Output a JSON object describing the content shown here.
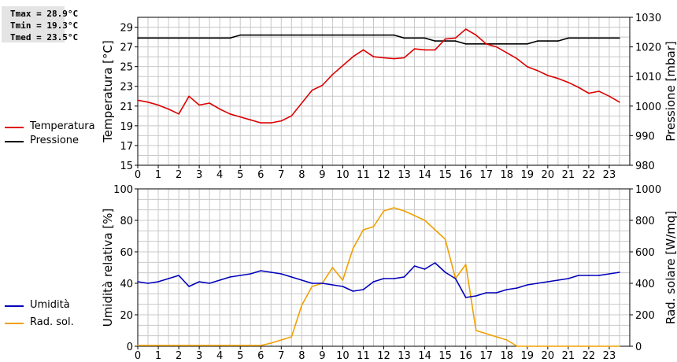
{
  "stats": {
    "tmax": "Tmax = 28.9°C",
    "tmin": "Tmin = 19.3°C",
    "tmed": "Tmed = 23.5°C"
  },
  "colors": {
    "temperature": "#dd0000",
    "pressure": "#000000",
    "humidity": "#0000bb",
    "radiation": "#f0a000",
    "grid": "#c8c8c8"
  },
  "chart_data": [
    {
      "type": "line",
      "ylabel_left": "Temperatura [°C]",
      "ylabel_right": "Pressione [mbar]",
      "x_ticks": [
        "0",
        "1",
        "2",
        "3",
        "4",
        "5",
        "6",
        "7",
        "8",
        "9",
        "10",
        "11",
        "12",
        "13",
        "14",
        "15",
        "16",
        "17",
        "18",
        "19",
        "20",
        "21",
        "22",
        "23"
      ],
      "xlim": [
        0,
        24
      ],
      "ylim_left": [
        15,
        30
      ],
      "ylim_right": [
        980,
        1030
      ],
      "y_ticks_left": [
        "15",
        "17",
        "19",
        "21",
        "23",
        "25",
        "27",
        "29"
      ],
      "y_ticks_right": [
        "980",
        "990",
        "1000",
        "1010",
        "1020",
        "1030"
      ],
      "series": [
        {
          "name": "Temperatura",
          "axis": "left",
          "x": [
            0,
            0.5,
            1,
            1.5,
            2,
            2.5,
            3,
            3.5,
            4,
            4.5,
            5,
            5.5,
            6,
            6.5,
            7,
            7.5,
            8,
            8.5,
            9,
            9.5,
            10,
            10.5,
            11,
            11.5,
            12,
            12.5,
            13,
            13.5,
            14,
            14.5,
            15,
            15.5,
            16,
            16.5,
            17,
            17.5,
            18,
            18.5,
            19,
            19.5,
            20,
            20.5,
            21,
            21.5,
            22,
            22.5,
            23,
            23.5
          ],
          "values": [
            21.6,
            21.4,
            21.1,
            20.7,
            20.2,
            22.0,
            21.1,
            21.3,
            20.7,
            20.2,
            19.9,
            19.6,
            19.3,
            19.3,
            19.5,
            20.0,
            21.3,
            22.6,
            23.1,
            24.2,
            25.1,
            26.0,
            26.7,
            26.0,
            25.9,
            25.8,
            25.9,
            26.8,
            26.7,
            26.7,
            27.8,
            27.9,
            28.8,
            28.2,
            27.3,
            27.0,
            26.4,
            25.8,
            25.0,
            24.6,
            24.1,
            23.8,
            23.4,
            22.9,
            22.3,
            22.5,
            22.0,
            21.4
          ]
        },
        {
          "name": "Pressione",
          "axis": "right",
          "x": [
            0,
            0.5,
            1,
            1.5,
            2,
            2.5,
            3,
            3.5,
            4,
            4.5,
            5,
            5.5,
            6,
            6.5,
            7,
            7.5,
            8,
            8.5,
            9,
            9.5,
            10,
            10.5,
            11,
            11.5,
            12,
            12.5,
            13,
            13.5,
            14,
            14.5,
            15,
            15.5,
            16,
            16.5,
            17,
            17.5,
            18,
            18.5,
            19,
            19.5,
            20,
            20.5,
            21,
            21.5,
            22,
            22.5,
            23,
            23.5
          ],
          "values": [
            1023,
            1023,
            1023,
            1023,
            1023,
            1023,
            1023,
            1023,
            1023,
            1023,
            1024,
            1024,
            1024,
            1024,
            1024,
            1024,
            1024,
            1024,
            1024,
            1024,
            1024,
            1024,
            1024,
            1024,
            1024,
            1024,
            1023,
            1023,
            1023,
            1022,
            1022,
            1022,
            1021,
            1021,
            1021,
            1021,
            1021,
            1021,
            1021,
            1022,
            1022,
            1022,
            1023,
            1023,
            1023,
            1023,
            1023,
            1023
          ]
        }
      ]
    },
    {
      "type": "line",
      "ylabel_left": "Umidità relativa [%]",
      "ylabel_right": "Rad. solare [W/mq]",
      "x_ticks": [
        "0",
        "1",
        "2",
        "3",
        "4",
        "5",
        "6",
        "7",
        "8",
        "9",
        "10",
        "11",
        "12",
        "13",
        "14",
        "15",
        "16",
        "17",
        "18",
        "19",
        "20",
        "21",
        "22",
        "23"
      ],
      "xlim": [
        0,
        24
      ],
      "ylim_left": [
        0,
        100
      ],
      "ylim_right": [
        0,
        1000
      ],
      "y_ticks_left": [
        "0",
        "20",
        "40",
        "60",
        "80",
        "100"
      ],
      "y_ticks_right": [
        "0",
        "200",
        "400",
        "600",
        "800",
        "1000"
      ],
      "series": [
        {
          "name": "Umidità",
          "axis": "left",
          "x": [
            0,
            0.5,
            1,
            1.5,
            2,
            2.5,
            3,
            3.5,
            4,
            4.5,
            5,
            5.5,
            6,
            6.5,
            7,
            7.5,
            8,
            8.5,
            9,
            9.5,
            10,
            10.5,
            11,
            11.5,
            12,
            12.5,
            13,
            13.5,
            14,
            14.5,
            15,
            15.5,
            16,
            16.5,
            17,
            17.5,
            18,
            18.5,
            19,
            19.5,
            20,
            20.5,
            21,
            21.5,
            22,
            22.5,
            23,
            23.5
          ],
          "values": [
            41,
            40,
            41,
            43,
            45,
            38,
            41,
            40,
            42,
            44,
            45,
            46,
            48,
            47,
            46,
            44,
            42,
            40,
            40,
            39,
            38,
            35,
            36,
            41,
            43,
            43,
            44,
            51,
            49,
            53,
            47,
            43,
            31,
            32,
            34,
            34,
            36,
            37,
            39,
            40,
            41,
            42,
            43,
            45,
            45,
            45,
            46,
            47
          ]
        },
        {
          "name": "Rad. sol.",
          "axis": "right",
          "x": [
            0,
            0.5,
            1,
            1.5,
            2,
            2.5,
            3,
            3.5,
            4,
            4.5,
            5,
            5.5,
            6,
            6.5,
            7,
            7.5,
            8,
            8.5,
            9,
            9.5,
            10,
            10.5,
            11,
            11.5,
            12,
            12.5,
            13,
            13.5,
            14,
            14.5,
            15,
            15.5,
            16,
            16.5,
            17,
            17.5,
            18,
            18.5,
            19,
            19.5,
            20,
            20.5,
            21,
            21.5,
            22,
            22.5,
            23,
            23.5
          ],
          "values": [
            5,
            5,
            5,
            5,
            5,
            5,
            5,
            5,
            5,
            5,
            5,
            5,
            5,
            20,
            40,
            60,
            260,
            380,
            400,
            500,
            420,
            620,
            740,
            760,
            860,
            880,
            860,
            830,
            800,
            740,
            680,
            430,
            520,
            100,
            80,
            60,
            40,
            0,
            0,
            0,
            0,
            0,
            0,
            0,
            0,
            0,
            0,
            0
          ]
        }
      ]
    }
  ]
}
